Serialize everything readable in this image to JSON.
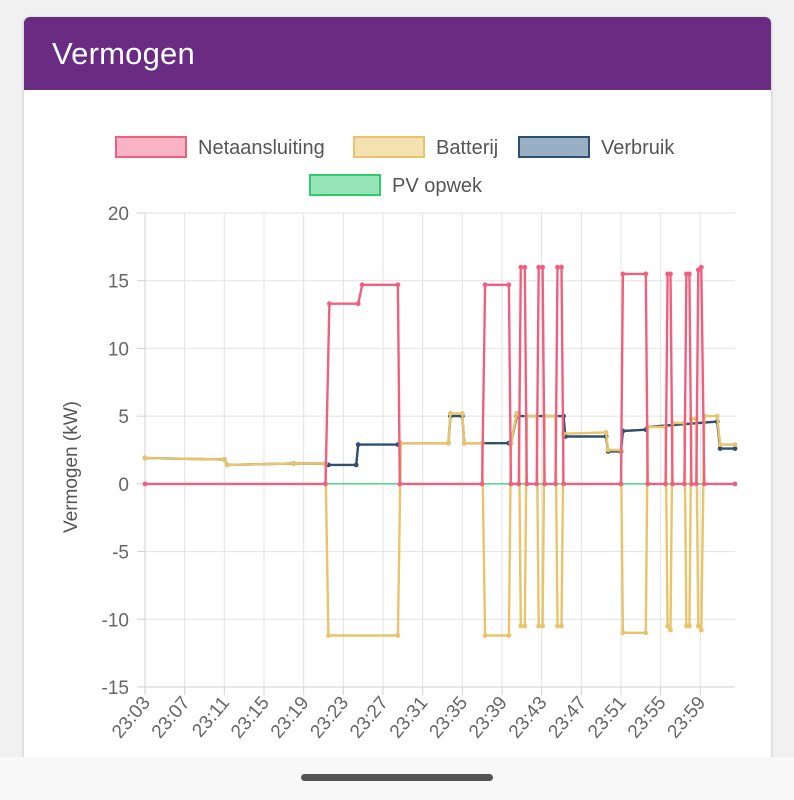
{
  "card": {
    "title": "Vermogen"
  },
  "colors": {
    "header": "#6a2c82",
    "netaansluiting": "#f0607e",
    "batterij": "#e8c46a",
    "verbruik": "#2f4f6f",
    "pv_opwek": "#2ecc71"
  },
  "chart_data": {
    "type": "line",
    "ylabel": "Vermogen (kW)",
    "xlabel": "",
    "ylim": [
      -15,
      20
    ],
    "yticks": [
      20,
      15,
      10,
      5,
      0,
      -5,
      -10,
      -15
    ],
    "xlim": [
      3,
      62.5
    ],
    "xticks": [
      "23:03",
      "23:07",
      "23:11",
      "23:15",
      "23:19",
      "23:23",
      "23:27",
      "23:31",
      "23:35",
      "23:39",
      "23:43",
      "23:47",
      "23:51",
      "23:55",
      "23:59"
    ],
    "grid": true,
    "legend_position": "top",
    "series": [
      {
        "name": "Netaansluiting",
        "color": "#f0607e",
        "fill": "#f8b4c4",
        "points": [
          [
            3.0,
            0.0
          ],
          [
            21.2,
            0.0
          ],
          [
            21.6,
            13.3
          ],
          [
            24.5,
            13.3
          ],
          [
            24.9,
            14.7
          ],
          [
            28.5,
            14.7
          ],
          [
            28.7,
            0.0
          ],
          [
            37.0,
            0.0
          ],
          [
            37.3,
            14.7
          ],
          [
            39.7,
            14.7
          ],
          [
            39.9,
            0.0
          ],
          [
            40.7,
            0.0
          ],
          [
            40.9,
            16.0
          ],
          [
            41.3,
            16.0
          ],
          [
            41.5,
            0.0
          ],
          [
            42.5,
            0.0
          ],
          [
            42.7,
            16.0
          ],
          [
            43.1,
            16.0
          ],
          [
            43.3,
            0.0
          ],
          [
            44.4,
            0.0
          ],
          [
            44.6,
            16.0
          ],
          [
            45.0,
            16.0
          ],
          [
            45.2,
            0.0
          ],
          [
            51.0,
            0.0
          ],
          [
            51.2,
            15.5
          ],
          [
            53.5,
            15.5
          ],
          [
            53.7,
            0.0
          ],
          [
            55.5,
            0.0
          ],
          [
            55.7,
            15.5
          ],
          [
            56.0,
            15.5
          ],
          [
            56.2,
            0.0
          ],
          [
            57.4,
            0.0
          ],
          [
            57.6,
            15.5
          ],
          [
            57.9,
            15.5
          ],
          [
            58.1,
            0.0
          ],
          [
            58.6,
            0.0
          ],
          [
            58.8,
            15.8
          ],
          [
            59.1,
            16.0
          ],
          [
            59.4,
            0.0
          ],
          [
            62.5,
            0.0
          ]
        ]
      },
      {
        "name": "Batterij",
        "color": "#e8c46a",
        "fill": "#f4e1b1",
        "points": [
          [
            3.0,
            1.9
          ],
          [
            11.0,
            1.8
          ],
          [
            11.3,
            1.4
          ],
          [
            18.0,
            1.5
          ],
          [
            21.2,
            1.5
          ],
          [
            21.5,
            -11.2
          ],
          [
            28.5,
            -11.2
          ],
          [
            28.8,
            3.0
          ],
          [
            33.6,
            3.0
          ],
          [
            33.8,
            5.2
          ],
          [
            35.0,
            5.2
          ],
          [
            35.2,
            3.0
          ],
          [
            37.0,
            3.0
          ],
          [
            37.3,
            -11.2
          ],
          [
            39.7,
            -11.2
          ],
          [
            39.9,
            3.0
          ],
          [
            40.5,
            5.2
          ],
          [
            40.7,
            5.2
          ],
          [
            40.9,
            -10.5
          ],
          [
            41.3,
            -10.5
          ],
          [
            41.5,
            5.0
          ],
          [
            42.5,
            5.0
          ],
          [
            42.7,
            -10.5
          ],
          [
            43.1,
            -10.5
          ],
          [
            43.3,
            5.0
          ],
          [
            44.4,
            5.0
          ],
          [
            44.6,
            -10.5
          ],
          [
            45.0,
            -10.5
          ],
          [
            45.2,
            3.7
          ],
          [
            49.5,
            3.8
          ],
          [
            49.7,
            2.5
          ],
          [
            51.0,
            2.5
          ],
          [
            51.2,
            -11.0
          ],
          [
            53.5,
            -11.0
          ],
          [
            53.7,
            4.2
          ],
          [
            55.5,
            4.2
          ],
          [
            55.7,
            -10.5
          ],
          [
            56.0,
            -10.8
          ],
          [
            56.2,
            4.5
          ],
          [
            57.4,
            4.5
          ],
          [
            57.6,
            -10.5
          ],
          [
            57.9,
            -10.5
          ],
          [
            58.1,
            4.8
          ],
          [
            58.6,
            4.8
          ],
          [
            58.8,
            -10.5
          ],
          [
            59.1,
            -10.8
          ],
          [
            59.4,
            5.0
          ],
          [
            60.7,
            5.0
          ],
          [
            61.0,
            2.9
          ],
          [
            62.5,
            2.9
          ]
        ]
      },
      {
        "name": "Verbruik",
        "color": "#2f4f6f",
        "fill": "#99b0c4",
        "points": [
          [
            3.0,
            1.9
          ],
          [
            11.0,
            1.8
          ],
          [
            11.3,
            1.4
          ],
          [
            18.0,
            1.5
          ],
          [
            21.2,
            1.5
          ],
          [
            21.5,
            1.4
          ],
          [
            24.3,
            1.4
          ],
          [
            24.5,
            2.9
          ],
          [
            28.5,
            2.9
          ],
          [
            28.8,
            3.0
          ],
          [
            33.6,
            3.0
          ],
          [
            33.8,
            5.0
          ],
          [
            35.0,
            5.0
          ],
          [
            35.2,
            3.0
          ],
          [
            39.7,
            3.0
          ],
          [
            39.9,
            3.0
          ],
          [
            40.5,
            5.0
          ],
          [
            45.2,
            5.0
          ],
          [
            45.4,
            3.5
          ],
          [
            49.5,
            3.5
          ],
          [
            49.7,
            2.4
          ],
          [
            51.0,
            2.4
          ],
          [
            51.2,
            3.9
          ],
          [
            53.5,
            4.0
          ],
          [
            53.7,
            4.2
          ],
          [
            60.7,
            4.6
          ],
          [
            61.0,
            2.6
          ],
          [
            62.5,
            2.6
          ]
        ]
      },
      {
        "name": "PV opwek",
        "color": "#2ecc71",
        "fill": "#95e3b6",
        "points": [
          [
            3.0,
            0.0
          ],
          [
            62.5,
            0.0
          ]
        ]
      }
    ]
  }
}
